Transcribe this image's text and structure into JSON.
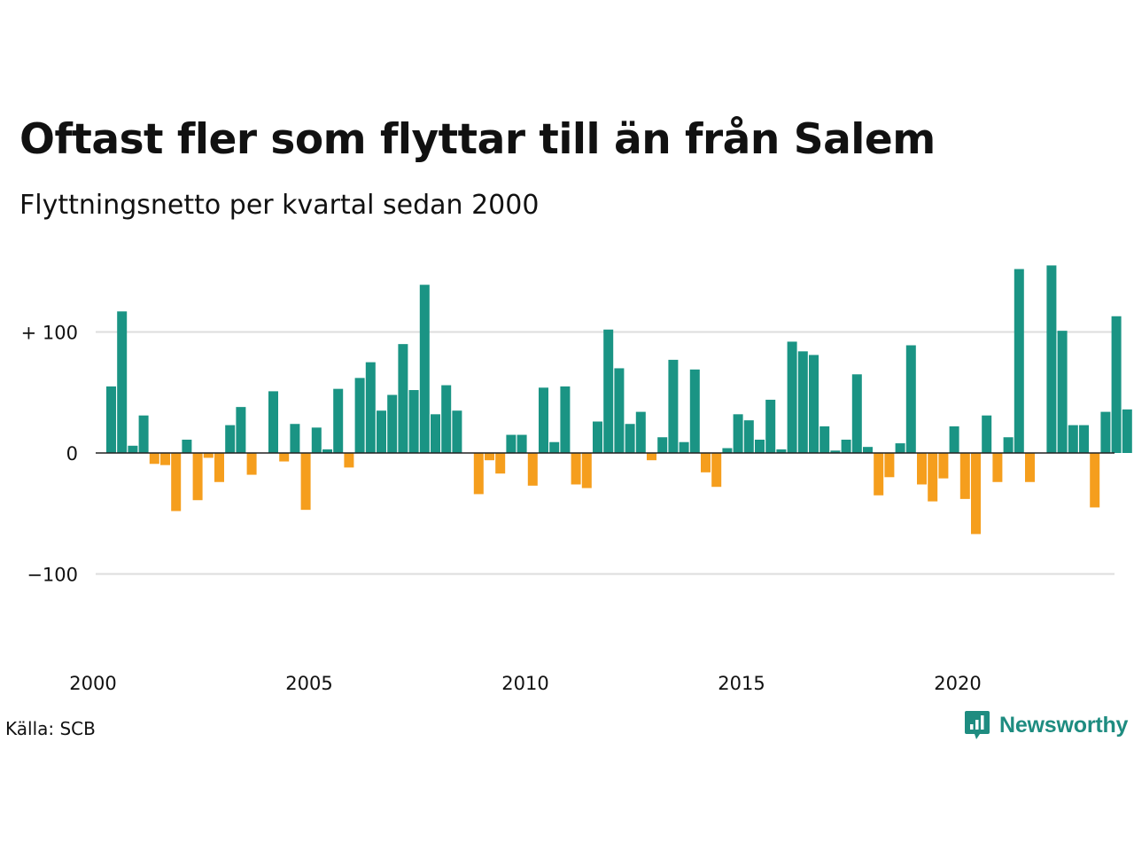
{
  "title": "Oftast fler som flyttar till än från Salem",
  "subtitle": "Flyttningsnetto per kvartal sedan 2000",
  "source": "Källa: SCB",
  "brand": {
    "name": "Newsworthy",
    "icon": "newsworthy-logo-icon",
    "color": "#1e8c80"
  },
  "colors": {
    "positive": "#1a9484",
    "negative": "#f59e1d",
    "grid": "#dddddd",
    "zero_line": "#222222"
  },
  "chart_data": {
    "type": "bar",
    "title": "Oftast fler som flyttar till än från Salem",
    "subtitle": "Flyttningsnetto per kvartal sedan 2000",
    "xlabel": "",
    "ylabel": "",
    "ylim": [
      -160,
      160
    ],
    "y_ticks": [
      {
        "value": 100,
        "label": "+ 100"
      },
      {
        "value": 0,
        "label": "0"
      },
      {
        "value": -100,
        "label": "−100"
      }
    ],
    "x_ticks": [
      "2000",
      "2005",
      "2010",
      "2015",
      "2020"
    ],
    "grid": true,
    "legend": "none",
    "start_quarter": "2000K1",
    "values": [
      55,
      117,
      6,
      31,
      -9,
      -10,
      -48,
      11,
      -39,
      -4,
      -24,
      23,
      38,
      -18,
      0,
      51,
      -7,
      24,
      -47,
      21,
      3,
      53,
      -12,
      62,
      75,
      35,
      48,
      90,
      52,
      139,
      32,
      56,
      35,
      0,
      -34,
      -6,
      -17,
      15,
      15,
      -27,
      54,
      9,
      55,
      -26,
      -29,
      26,
      102,
      70,
      24,
      34,
      -6,
      13,
      77,
      9,
      69,
      -16,
      -28,
      4,
      32,
      27,
      11,
      44,
      3,
      92,
      84,
      81,
      22,
      2,
      11,
      65,
      5,
      -35,
      -20,
      8,
      89,
      -26,
      -40,
      -21,
      22,
      -38,
      -67,
      31,
      -24,
      13,
      152,
      -24,
      0,
      155,
      101,
      23,
      23,
      -45,
      34,
      113,
      36
    ]
  }
}
